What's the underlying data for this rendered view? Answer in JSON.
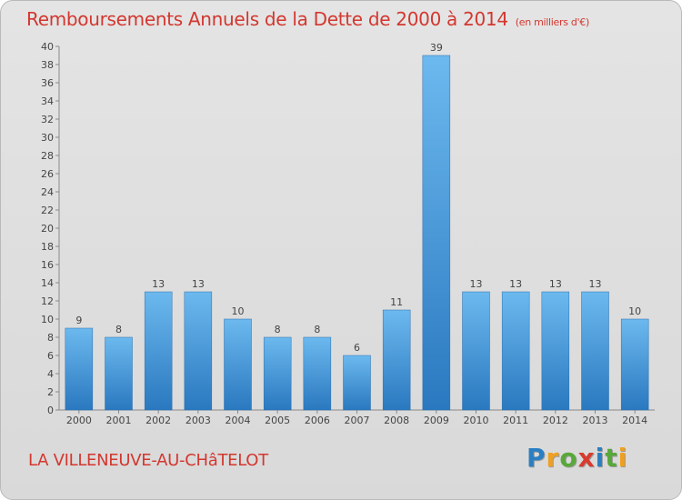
{
  "title": "Remboursements Annuels de la Dette de 2000 à 2014",
  "unit": "(en milliers d'€)",
  "town": "LA VILLENEUVE-AU-CHâTELOT",
  "brand": {
    "letters": [
      "P",
      "r",
      "o",
      "x",
      "i",
      "t",
      "i"
    ],
    "colors": [
      "#2a7fc2",
      "#f0a020",
      "#58a83a",
      "#d93b2f",
      "#2a7fc2",
      "#58a83a",
      "#f0a020"
    ]
  },
  "colors": {
    "title": "#d3372f",
    "bar_light": "#6cb9ef",
    "bar_dark": "#2a78bf"
  },
  "chart_data": {
    "type": "bar",
    "categories": [
      "2000",
      "2001",
      "2002",
      "2003",
      "2004",
      "2005",
      "2006",
      "2007",
      "2008",
      "2009",
      "2010",
      "2011",
      "2012",
      "2013",
      "2014"
    ],
    "values": [
      9,
      8,
      13,
      13,
      10,
      8,
      8,
      6,
      11,
      39,
      13,
      13,
      13,
      13,
      10
    ],
    "title": "Remboursements Annuels de la Dette de 2000 à 2014",
    "ylim": [
      0,
      40
    ],
    "yticks": [
      0,
      2,
      4,
      6,
      8,
      10,
      12,
      14,
      16,
      18,
      20,
      22,
      24,
      26,
      28,
      30,
      32,
      34,
      36,
      38,
      40
    ],
    "grid": false,
    "data_labels": true
  }
}
